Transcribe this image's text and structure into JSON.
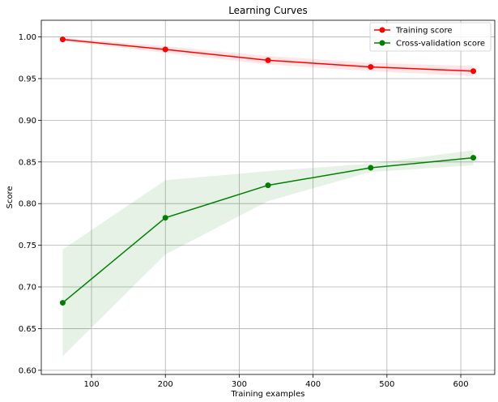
{
  "chart_data": {
    "type": "line",
    "title": "Learning Curves",
    "xlabel": "Training examples",
    "ylabel": "Score",
    "xlim": [
      32,
      646
    ],
    "ylim": [
      0.595,
      1.02
    ],
    "xticks": [
      100,
      200,
      300,
      400,
      500,
      600
    ],
    "yticks": [
      0.6,
      0.65,
      0.7,
      0.75,
      0.8,
      0.85,
      0.9,
      0.95,
      1.0
    ],
    "x": [
      61,
      200,
      339,
      478,
      617
    ],
    "grid": true,
    "legend_position": "top-right",
    "series": [
      {
        "name": "Training score",
        "color": "#ff0000",
        "values": [
          0.997,
          0.985,
          0.972,
          0.964,
          0.959
        ],
        "band_low": [
          0.995,
          0.981,
          0.967,
          0.959,
          0.953
        ],
        "band_high": [
          0.999,
          0.989,
          0.977,
          0.969,
          0.965
        ]
      },
      {
        "name": "Cross-validation score",
        "color": "#008000",
        "values": [
          0.681,
          0.783,
          0.822,
          0.843,
          0.855
        ],
        "band_low": [
          0.617,
          0.739,
          0.803,
          0.838,
          0.846
        ],
        "band_high": [
          0.745,
          0.828,
          0.839,
          0.848,
          0.864
        ]
      }
    ]
  }
}
